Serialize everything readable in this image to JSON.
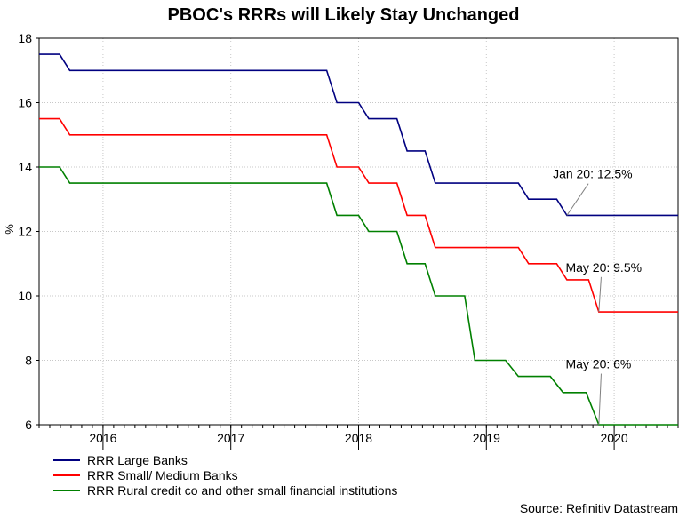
{
  "title": "PBOC's RRRs will Likely Stay Unchanged",
  "source": "Source: Refinitiv Datastream",
  "chart_data": {
    "type": "line",
    "title": "PBOC's RRRs will Likely Stay Unchanged",
    "xlabel": "",
    "ylabel": "%",
    "xlim": [
      2015.5,
      2020.5
    ],
    "ylim": [
      6,
      18
    ],
    "yticks": [
      "6",
      "8",
      "10",
      "12",
      "14",
      "16",
      "18"
    ],
    "xticks": [
      "2016",
      "2017",
      "2018",
      "2019",
      "2020"
    ],
    "grid": true,
    "legend_position": "bottom-left",
    "series": [
      {
        "name": "RRR Large Banks",
        "color": "#000080",
        "x": [
          2015.5,
          2015.66,
          2015.74,
          2017.75,
          2017.83,
          2018.0,
          2018.08,
          2018.3,
          2018.38,
          2018.52,
          2018.6,
          2019.0,
          2019.08,
          2019.25,
          2019.33,
          2019.55,
          2019.63,
          2020.5
        ],
        "y": [
          17.5,
          17.5,
          17.0,
          17.0,
          16.0,
          16.0,
          15.5,
          15.5,
          14.5,
          14.5,
          13.5,
          13.5,
          13.5,
          13.5,
          13.0,
          13.0,
          12.5,
          12.5
        ]
      },
      {
        "name": "RRR Small/ Medium Banks",
        "color": "#ff0000",
        "x": [
          2015.5,
          2015.66,
          2015.74,
          2017.75,
          2017.83,
          2018.0,
          2018.08,
          2018.3,
          2018.38,
          2018.52,
          2018.6,
          2019.0,
          2019.08,
          2019.25,
          2019.33,
          2019.55,
          2019.63,
          2019.8,
          2019.88,
          2020.5
        ],
        "y": [
          15.5,
          15.5,
          15.0,
          15.0,
          14.0,
          14.0,
          13.5,
          13.5,
          12.5,
          12.5,
          11.5,
          11.5,
          11.5,
          11.5,
          11.0,
          11.0,
          10.5,
          10.5,
          9.5,
          9.5
        ]
      },
      {
        "name": "RRR Rural credit co and other small financial institutions",
        "color": "#008000",
        "x": [
          2015.5,
          2015.66,
          2015.74,
          2017.75,
          2017.83,
          2018.0,
          2018.08,
          2018.3,
          2018.38,
          2018.52,
          2018.6,
          2018.83,
          2018.91,
          2019.15,
          2019.25,
          2019.5,
          2019.6,
          2019.78,
          2019.88,
          2020.5
        ],
        "y": [
          14.0,
          14.0,
          13.5,
          13.5,
          12.5,
          12.5,
          12.0,
          12.0,
          11.0,
          11.0,
          10.0,
          10.0,
          8.0,
          8.0,
          7.5,
          7.5,
          7.0,
          7.0,
          6.0,
          6.0
        ]
      }
    ],
    "annotations": [
      {
        "text": "Jan 20: 12.5%",
        "x": 2019.52,
        "y": 13.65,
        "point": [
          2019.63,
          12.5
        ]
      },
      {
        "text": "May 20: 9.5%",
        "x": 2019.62,
        "y": 10.75,
        "point": [
          2019.88,
          9.5
        ]
      },
      {
        "text": "May 20: 6%",
        "x": 2019.62,
        "y": 7.75,
        "point": [
          2019.88,
          6.0
        ]
      }
    ]
  }
}
